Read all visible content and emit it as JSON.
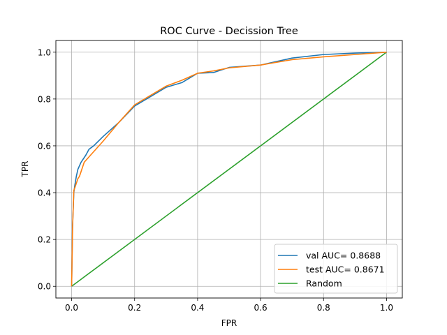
{
  "chart_data": {
    "type": "line",
    "title": "ROC Curve - Decission Tree",
    "xlabel": "FPR",
    "ylabel": "TPR",
    "xlim": [
      -0.05,
      1.05
    ],
    "ylim": [
      -0.05,
      1.05
    ],
    "xticks": [
      "0.0",
      "0.2",
      "0.4",
      "0.6",
      "0.8",
      "1.0"
    ],
    "yticks": [
      "0.0",
      "0.2",
      "0.4",
      "0.6",
      "0.8",
      "1.0"
    ],
    "grid": true,
    "legend_position": "lower-right",
    "series": [
      {
        "name": "val AUC= 0.8688",
        "color": "#1f77b4",
        "x": [
          0.0,
          0.003,
          0.007,
          0.01,
          0.015,
          0.02,
          0.03,
          0.045,
          0.055,
          0.07,
          0.1,
          0.15,
          0.2,
          0.25,
          0.3,
          0.35,
          0.4,
          0.45,
          0.5,
          0.6,
          0.7,
          0.8,
          0.9,
          1.0
        ],
        "y": [
          0.0,
          0.26,
          0.4,
          0.43,
          0.47,
          0.5,
          0.53,
          0.56,
          0.585,
          0.6,
          0.64,
          0.7,
          0.77,
          0.81,
          0.85,
          0.87,
          0.91,
          0.913,
          0.935,
          0.945,
          0.975,
          0.99,
          0.996,
          1.0
        ]
      },
      {
        "name": "test AUC= 0.8671",
        "color": "#ff7f0e",
        "x": [
          0.0,
          0.003,
          0.007,
          0.01,
          0.02,
          0.025,
          0.04,
          0.06,
          0.1,
          0.15,
          0.2,
          0.25,
          0.3,
          0.35,
          0.4,
          0.45,
          0.5,
          0.6,
          0.7,
          0.8,
          0.9,
          1.0
        ],
        "y": [
          0.0,
          0.25,
          0.41,
          0.42,
          0.46,
          0.47,
          0.53,
          0.56,
          0.62,
          0.7,
          0.775,
          0.815,
          0.855,
          0.88,
          0.91,
          0.92,
          0.933,
          0.945,
          0.968,
          0.98,
          0.99,
          1.0
        ]
      },
      {
        "name": "Random",
        "color": "#2ca02c",
        "x": [
          0.0,
          1.0
        ],
        "y": [
          0.0,
          1.0
        ]
      }
    ]
  }
}
